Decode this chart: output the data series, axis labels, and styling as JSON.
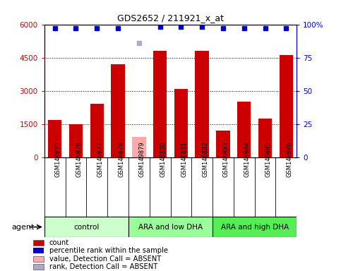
{
  "title": "GDS2652 / 211921_x_at",
  "samples": [
    "GSM149875",
    "GSM149876",
    "GSM149877",
    "GSM149878",
    "GSM149879",
    "GSM149880",
    "GSM149881",
    "GSM149882",
    "GSM149883",
    "GSM149884",
    "GSM149885",
    "GSM149886"
  ],
  "bar_values": [
    1680,
    1480,
    2400,
    4200,
    900,
    4800,
    3100,
    4800,
    1200,
    2500,
    1750,
    4600
  ],
  "bar_colors": [
    "#cc0000",
    "#cc0000",
    "#cc0000",
    "#cc0000",
    "#ffaaaa",
    "#cc0000",
    "#cc0000",
    "#cc0000",
    "#cc0000",
    "#cc0000",
    "#cc0000",
    "#cc0000"
  ],
  "rank_values": [
    97,
    97,
    97,
    97,
    86,
    98,
    98,
    98,
    97,
    97,
    97,
    97
  ],
  "rank_absent": [
    false,
    false,
    false,
    false,
    true,
    false,
    false,
    false,
    false,
    false,
    false,
    false
  ],
  "ylim_left": [
    0,
    6000
  ],
  "ylim_right": [
    0,
    100
  ],
  "yticks_left": [
    0,
    1500,
    3000,
    4500,
    6000
  ],
  "ytick_labels_left": [
    "0",
    "1500",
    "3000",
    "4500",
    "6000"
  ],
  "yticks_right": [
    0,
    25,
    50,
    75,
    100
  ],
  "ytick_labels_right": [
    "0",
    "25",
    "50",
    "75",
    "100%"
  ],
  "groups": [
    {
      "label": "control",
      "start": 0,
      "end": 3,
      "color": "#ccffcc"
    },
    {
      "label": "ARA and low DHA",
      "start": 4,
      "end": 7,
      "color": "#99ff99"
    },
    {
      "label": "ARA and high DHA",
      "start": 8,
      "end": 11,
      "color": "#55ee55"
    }
  ],
  "legend_items": [
    {
      "color": "#cc0000",
      "label": "count",
      "marker": "s"
    },
    {
      "color": "#0000cc",
      "label": "percentile rank within the sample",
      "marker": "s"
    },
    {
      "color": "#ffaaaa",
      "label": "value, Detection Call = ABSENT",
      "marker": "s"
    },
    {
      "color": "#aaaacc",
      "label": "rank, Detection Call = ABSENT",
      "marker": "s"
    }
  ],
  "rank_dot_color": "#0000cc",
  "rank_absent_dot_color": "#aaaacc",
  "sample_bg_color": "#cccccc",
  "background_color": "#ffffff"
}
